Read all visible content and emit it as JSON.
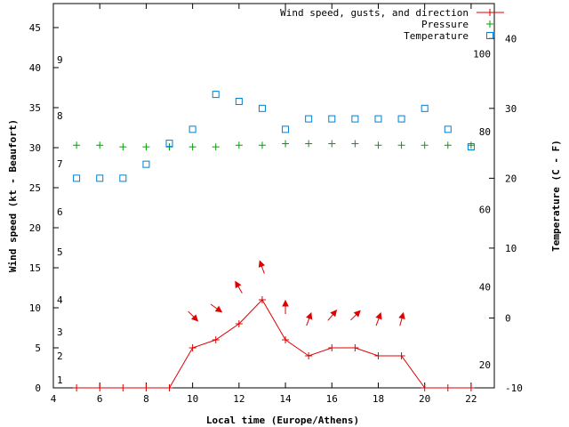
{
  "chart_data": {
    "type": "line",
    "xlabel": "Local time (Europe/Athens)",
    "ylabel_left": "Wind speed (kt - Beaufort)",
    "ylabel_right": "Temperature (C - F)",
    "x_range": [
      4,
      23
    ],
    "x_ticks": [
      4,
      6,
      8,
      10,
      12,
      14,
      16,
      18,
      20,
      22
    ],
    "y_left_range": [
      0,
      48
    ],
    "y_left_ticks": [
      0,
      5,
      10,
      15,
      20,
      25,
      30,
      35,
      40,
      45
    ],
    "beaufort_labels": [
      {
        "label": "1",
        "kt": 1
      },
      {
        "label": "2",
        "kt": 4
      },
      {
        "label": "3",
        "kt": 7
      },
      {
        "label": "4",
        "kt": 11
      },
      {
        "label": "5",
        "kt": 17
      },
      {
        "label": "6",
        "kt": 22
      },
      {
        "label": "7",
        "kt": 28
      },
      {
        "label": "8",
        "kt": 34
      },
      {
        "label": "9",
        "kt": 41
      }
    ],
    "y_right_range": [
      -10,
      45
    ],
    "y_right_ticks": [
      -10,
      0,
      10,
      20,
      30,
      40
    ],
    "fahrenheit_labels": [
      20,
      40,
      60,
      80,
      100
    ],
    "legend": [
      {
        "name": "Wind speed, gusts, and direction",
        "marker": "line-plus",
        "color": "#e00000"
      },
      {
        "name": "Pressure",
        "marker": "plus",
        "color": "#00a000"
      },
      {
        "name": "Temperature",
        "marker": "square",
        "color": "#0080d0"
      }
    ],
    "series": [
      {
        "name": "Wind speed",
        "color": "#e00000",
        "x": [
          5,
          6,
          7,
          8,
          9,
          10,
          11,
          12,
          13,
          14,
          15,
          16,
          17,
          18,
          19,
          20,
          21,
          22
        ],
        "values": [
          0,
          0,
          0,
          0,
          0,
          5,
          6,
          8,
          11,
          6,
          4,
          5,
          5,
          4,
          4,
          0,
          0,
          0
        ]
      },
      {
        "name": "Wind direction",
        "color": "#e00000",
        "arrows": [
          {
            "x": 10,
            "y": 9,
            "dir_deg": 135
          },
          {
            "x": 11,
            "y": 10,
            "dir_deg": 125
          },
          {
            "x": 12,
            "y": 12.5,
            "dir_deg": -30
          },
          {
            "x": 13,
            "y": 15,
            "dir_deg": -20
          },
          {
            "x": 14,
            "y": 10,
            "dir_deg": 0
          },
          {
            "x": 15,
            "y": 8.5,
            "dir_deg": 20
          },
          {
            "x": 16,
            "y": 9,
            "dir_deg": 40
          },
          {
            "x": 17,
            "y": 9,
            "dir_deg": 45
          },
          {
            "x": 18,
            "y": 8.5,
            "dir_deg": 20
          },
          {
            "x": 19,
            "y": 8.5,
            "dir_deg": 15
          }
        ]
      },
      {
        "name": "Pressure",
        "color": "#00a000",
        "axis": "left",
        "x": [
          5,
          6,
          7,
          8,
          9,
          10,
          11,
          12,
          13,
          14,
          15,
          16,
          17,
          18,
          19,
          20,
          21,
          22
        ],
        "values": [
          30.3,
          30.3,
          30.1,
          30.1,
          30.1,
          30.1,
          30.1,
          30.3,
          30.3,
          30.5,
          30.5,
          30.5,
          30.5,
          30.3,
          30.3,
          30.3,
          30.3,
          30.3
        ]
      },
      {
        "name": "Temperature",
        "color": "#0080d0",
        "axis": "right",
        "x": [
          5,
          6,
          7,
          8,
          9,
          10,
          11,
          12,
          13,
          14,
          15,
          16,
          17,
          18,
          19,
          20,
          21,
          22
        ],
        "values": [
          20,
          20,
          20,
          22,
          25,
          27,
          32,
          31,
          30,
          27,
          28.5,
          28.5,
          28.5,
          28.5,
          28.5,
          30,
          27,
          24.5
        ]
      }
    ]
  }
}
